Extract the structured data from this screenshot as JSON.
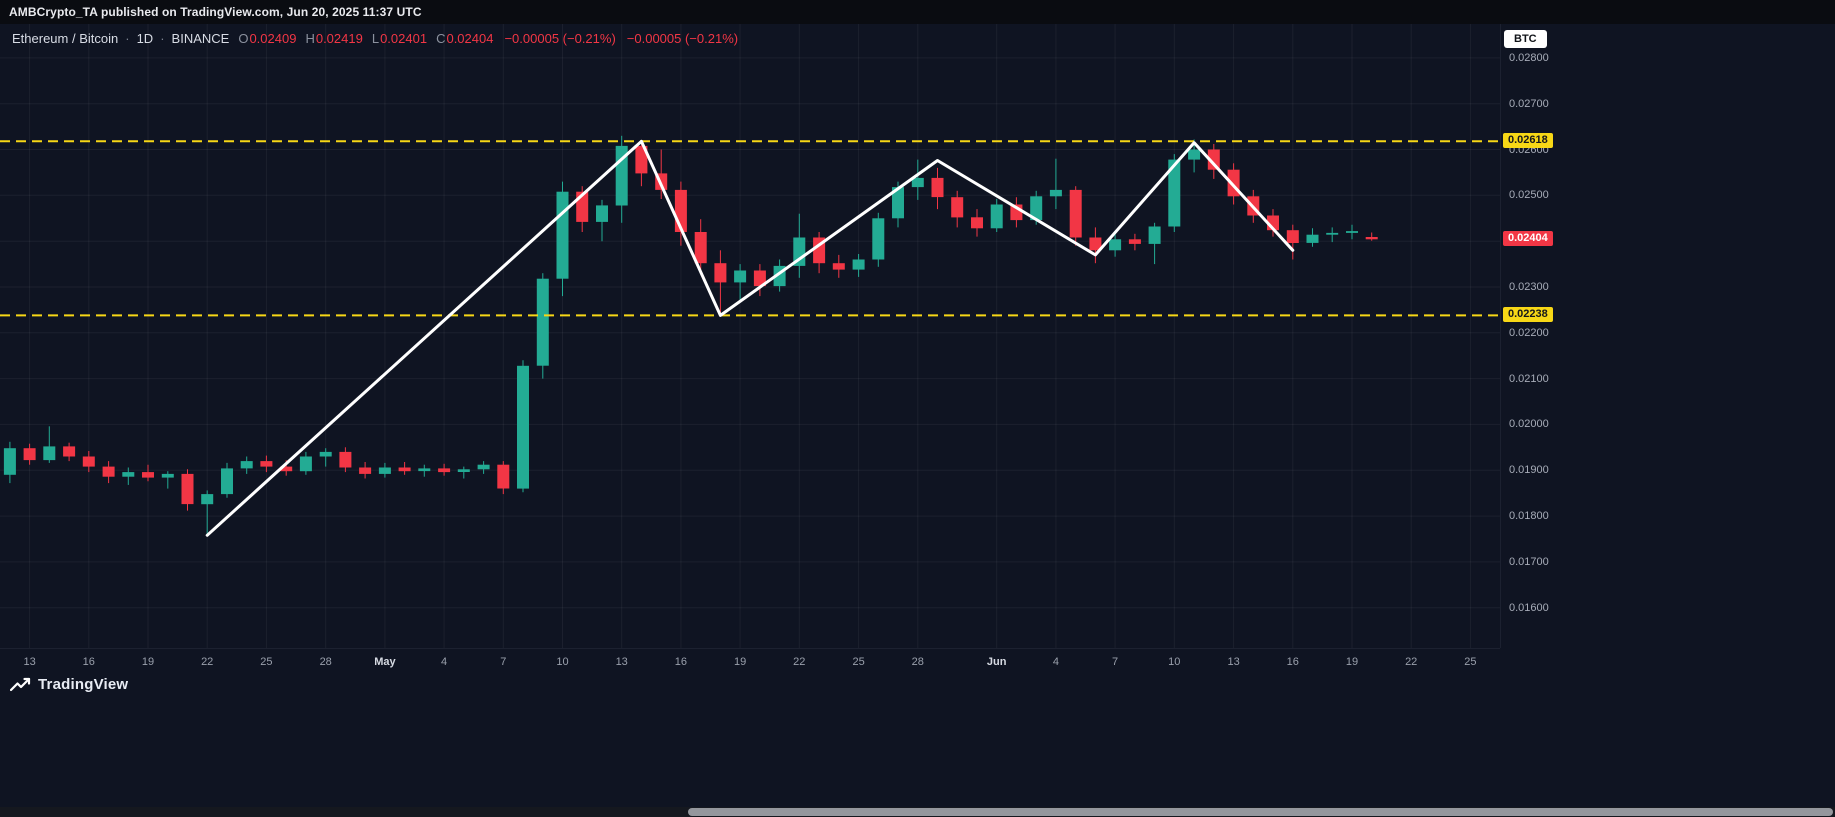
{
  "attribution": "AMBCrypto_TA published on TradingView.com, Jun 20, 2025 11:37 UTC",
  "header": {
    "symbol": "Ethereum / Bitcoin",
    "dot": "·",
    "interval": "1D",
    "exchange": "BINANCE",
    "ohlc": [
      {
        "key": "O",
        "value": "0.02409"
      },
      {
        "key": "H",
        "value": "0.02419"
      },
      {
        "key": "L",
        "value": "0.02401"
      },
      {
        "key": "C",
        "value": "0.02404"
      }
    ],
    "change_1": "−0.00005 (−0.21%)",
    "change_2": "−0.00005 (−0.21%)"
  },
  "price_axis": {
    "unit_button": "BTC"
  },
  "footer": {
    "brand": "TradingView"
  },
  "colors": {
    "background": "#0f1422",
    "grid": "rgba(255,255,255,0.055)",
    "up": "#23ab94",
    "down": "#f23645",
    "level": "#f7d716",
    "zigzag": "#ffffff",
    "axis_text": "#a7acb8"
  },
  "chart_data": {
    "type": "candlestick",
    "title": "Ethereum / Bitcoin · 1D · BINANCE",
    "start_date": "2025-04-12",
    "interval": "1D",
    "y_axis": {
      "top": 0.02874,
      "bottom": 0.01512,
      "ticks": [
        {
          "value": 0.028,
          "label": "0.02800"
        },
        {
          "value": 0.027,
          "label": "0.02700"
        },
        {
          "value": 0.026,
          "label": "0.02600"
        },
        {
          "value": 0.025,
          "label": "0.02500"
        },
        {
          "value": 0.024,
          "label": "0.02400"
        },
        {
          "value": 0.023,
          "label": "0.02300"
        },
        {
          "value": 0.022,
          "label": "0.02200"
        },
        {
          "value": 0.021,
          "label": "0.02100"
        },
        {
          "value": 0.02,
          "label": "0.02000"
        },
        {
          "value": 0.019,
          "label": "0.01900"
        },
        {
          "value": 0.018,
          "label": "0.01800"
        },
        {
          "value": 0.017,
          "label": "0.01700"
        },
        {
          "value": 0.016,
          "label": "0.01600"
        }
      ]
    },
    "x_axis": {
      "slots": 76,
      "ticks": [
        {
          "i": 1,
          "label": "13"
        },
        {
          "i": 4,
          "label": "16"
        },
        {
          "i": 7,
          "label": "19"
        },
        {
          "i": 10,
          "label": "22"
        },
        {
          "i": 13,
          "label": "25"
        },
        {
          "i": 16,
          "label": "28"
        },
        {
          "i": 19,
          "label": "May",
          "month": true
        },
        {
          "i": 22,
          "label": "4"
        },
        {
          "i": 25,
          "label": "7"
        },
        {
          "i": 28,
          "label": "10"
        },
        {
          "i": 31,
          "label": "13"
        },
        {
          "i": 34,
          "label": "16"
        },
        {
          "i": 37,
          "label": "19"
        },
        {
          "i": 40,
          "label": "22"
        },
        {
          "i": 43,
          "label": "25"
        },
        {
          "i": 46,
          "label": "28"
        },
        {
          "i": 50,
          "label": "Jun",
          "month": true
        },
        {
          "i": 53,
          "label": "4"
        },
        {
          "i": 56,
          "label": "7"
        },
        {
          "i": 59,
          "label": "10"
        },
        {
          "i": 62,
          "label": "13"
        },
        {
          "i": 65,
          "label": "16"
        },
        {
          "i": 68,
          "label": "19"
        },
        {
          "i": 71,
          "label": "22"
        },
        {
          "i": 74,
          "label": "25"
        }
      ]
    },
    "levels": [
      {
        "value": 0.02618,
        "label": "0.02618"
      },
      {
        "value": 0.02238,
        "label": "0.02238"
      }
    ],
    "last_price": {
      "value": 0.02404,
      "label": "0.02404"
    },
    "zigzag": [
      [
        10,
        0.01758
      ],
      [
        32,
        0.02618
      ],
      [
        36,
        0.02238
      ],
      [
        47,
        0.02576
      ],
      [
        55,
        0.0237
      ],
      [
        60,
        0.02615
      ],
      [
        65,
        0.0238
      ]
    ],
    "candles": [
      [
        0.0189,
        0.01962,
        0.01872,
        0.01948
      ],
      [
        0.01948,
        0.01958,
        0.01912,
        0.01922
      ],
      [
        0.01922,
        0.01996,
        0.01916,
        0.01952
      ],
      [
        0.01952,
        0.0196,
        0.0192,
        0.0193
      ],
      [
        0.0193,
        0.01942,
        0.01896,
        0.01908
      ],
      [
        0.01908,
        0.0192,
        0.01872,
        0.01886
      ],
      [
        0.01886,
        0.01906,
        0.01868,
        0.01896
      ],
      [
        0.01896,
        0.01912,
        0.01876,
        0.01884
      ],
      [
        0.01884,
        0.01898,
        0.0186,
        0.01892
      ],
      [
        0.01892,
        0.01902,
        0.01812,
        0.01826
      ],
      [
        0.01826,
        0.01856,
        0.01758,
        0.01848
      ],
      [
        0.01848,
        0.01916,
        0.0184,
        0.01904
      ],
      [
        0.01904,
        0.0193,
        0.01892,
        0.0192
      ],
      [
        0.0192,
        0.01932,
        0.01896,
        0.01908
      ],
      [
        0.01908,
        0.01922,
        0.01888,
        0.01898
      ],
      [
        0.01898,
        0.0194,
        0.0189,
        0.0193
      ],
      [
        0.0193,
        0.01948,
        0.01908,
        0.0194
      ],
      [
        0.0194,
        0.0195,
        0.01896,
        0.01906
      ],
      [
        0.01906,
        0.01918,
        0.01882,
        0.01892
      ],
      [
        0.01892,
        0.01916,
        0.01884,
        0.01906
      ],
      [
        0.01906,
        0.01918,
        0.0189,
        0.01898
      ],
      [
        0.01898,
        0.01912,
        0.01886,
        0.01904
      ],
      [
        0.01904,
        0.01914,
        0.01888,
        0.01896
      ],
      [
        0.01896,
        0.01908,
        0.01882,
        0.01902
      ],
      [
        0.01902,
        0.0192,
        0.01892,
        0.01912
      ],
      [
        0.01912,
        0.0192,
        0.01848,
        0.0186
      ],
      [
        0.0186,
        0.0214,
        0.01852,
        0.02128
      ],
      [
        0.02128,
        0.0233,
        0.021,
        0.02318
      ],
      [
        0.02318,
        0.0253,
        0.0228,
        0.02508
      ],
      [
        0.02508,
        0.0252,
        0.0242,
        0.02442
      ],
      [
        0.02442,
        0.0249,
        0.024,
        0.02478
      ],
      [
        0.02478,
        0.0263,
        0.0244,
        0.02608
      ],
      [
        0.02608,
        0.02618,
        0.0252,
        0.02548
      ],
      [
        0.02548,
        0.026,
        0.02492,
        0.02512
      ],
      [
        0.02512,
        0.0253,
        0.0239,
        0.0242
      ],
      [
        0.0242,
        0.02448,
        0.0233,
        0.02352
      ],
      [
        0.02352,
        0.0238,
        0.02238,
        0.0231
      ],
      [
        0.0231,
        0.0235,
        0.0227,
        0.02336
      ],
      [
        0.02336,
        0.0235,
        0.0228,
        0.02302
      ],
      [
        0.02302,
        0.0236,
        0.0229,
        0.02346
      ],
      [
        0.02346,
        0.0246,
        0.0232,
        0.02408
      ],
      [
        0.02408,
        0.0242,
        0.0233,
        0.02352
      ],
      [
        0.02352,
        0.0237,
        0.0232,
        0.02338
      ],
      [
        0.02338,
        0.02372,
        0.02322,
        0.0236
      ],
      [
        0.0236,
        0.02462,
        0.02344,
        0.0245
      ],
      [
        0.0245,
        0.0253,
        0.0243,
        0.02518
      ],
      [
        0.02518,
        0.02578,
        0.0249,
        0.02538
      ],
      [
        0.02538,
        0.0256,
        0.0247,
        0.02496
      ],
      [
        0.02496,
        0.0251,
        0.0243,
        0.02452
      ],
      [
        0.02452,
        0.0247,
        0.0241,
        0.02428
      ],
      [
        0.02428,
        0.02492,
        0.0242,
        0.0248
      ],
      [
        0.0248,
        0.02496,
        0.0243,
        0.02446
      ],
      [
        0.02446,
        0.0251,
        0.02436,
        0.02498
      ],
      [
        0.02498,
        0.0258,
        0.0247,
        0.02512
      ],
      [
        0.02512,
        0.0252,
        0.0239,
        0.02408
      ],
      [
        0.02408,
        0.0243,
        0.02352,
        0.0238
      ],
      [
        0.0238,
        0.02418,
        0.02366,
        0.02404
      ],
      [
        0.02404,
        0.02416,
        0.0238,
        0.02394
      ],
      [
        0.02394,
        0.0244,
        0.0235,
        0.02432
      ],
      [
        0.02432,
        0.0259,
        0.0242,
        0.02578
      ],
      [
        0.02578,
        0.02622,
        0.0255,
        0.026
      ],
      [
        0.026,
        0.02612,
        0.02536,
        0.02556
      ],
      [
        0.02556,
        0.0257,
        0.0248,
        0.02498
      ],
      [
        0.02498,
        0.02512,
        0.0244,
        0.02456
      ],
      [
        0.02456,
        0.0247,
        0.0241,
        0.02424
      ],
      [
        0.02424,
        0.02436,
        0.0236,
        0.02396
      ],
      [
        0.02396,
        0.02428,
        0.02388,
        0.02414
      ],
      [
        0.02414,
        0.0243,
        0.02398,
        0.02418
      ],
      [
        0.02418,
        0.02436,
        0.02404,
        0.02422
      ],
      [
        0.02409,
        0.02419,
        0.02401,
        0.02404
      ]
    ]
  }
}
